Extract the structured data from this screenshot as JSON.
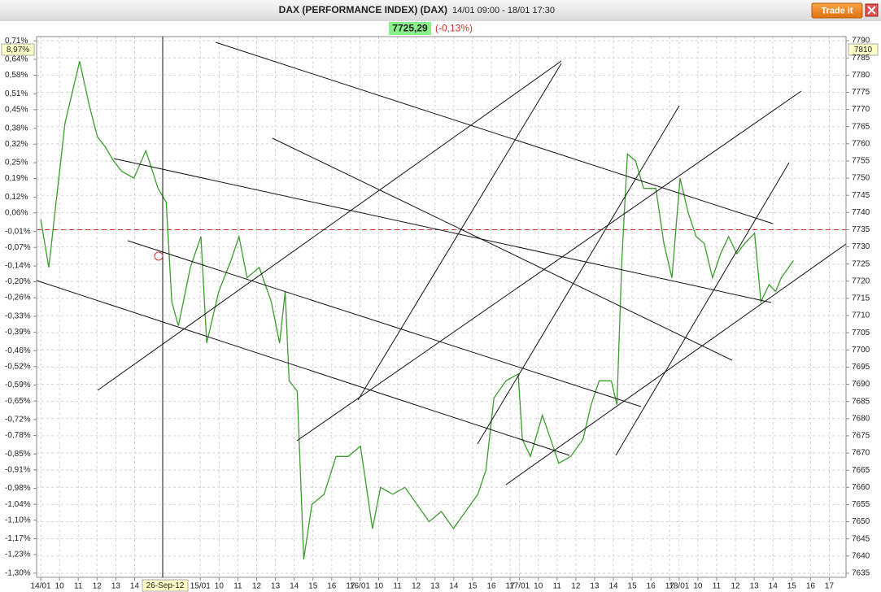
{
  "header": {
    "title": "DAX (PERFORMANCE INDEX) (DAX)",
    "range": "14/01 09:00 - 18/01 17:30",
    "button": "Trade it",
    "last_price": "7725,29",
    "change": "(-0,13%)"
  },
  "chart_data": {
    "type": "line",
    "color": "#3d9b2f",
    "x": [
      0,
      0.43,
      0.86,
      1.29,
      2.07,
      2.59,
      3.02,
      3.45,
      3.88,
      4.31,
      4.96,
      5.6,
      6.25,
      6.68,
      6.98,
      7.33,
      7.97,
      8.53,
      8.84,
      9.48,
      10.13,
      10.56,
      10.99,
      11.64,
      12.28,
      12.72,
      13.02,
      13.23,
      13.66,
      14.01,
      14.44,
      15.09,
      15.73,
      16.38,
      17.03,
      17.67,
      18.1,
      18.75,
      19.4,
      20.04,
      20.69,
      21.34,
      21.98,
      22.63,
      23.28,
      23.71,
      24.14,
      24.78,
      25.43,
      25.65,
      26.08,
      26.72,
      27.59,
      28.23,
      28.88,
      29.31,
      29.74,
      30.39,
      30.69,
      30.95,
      31.25,
      31.68,
      32.11,
      32.76,
      33.19,
      33.62,
      34.05,
      34.48,
      34.91,
      35.34,
      35.78,
      36.21,
      36.64,
      37.07,
      37.5,
      38.02,
      38.36,
      38.79,
      39.14,
      39.44,
      40.09
    ],
    "values": [
      7738,
      7724,
      7745,
      7766,
      7784,
      7771,
      7762,
      7759,
      7755,
      7752,
      7750,
      7758,
      7747,
      7743,
      7714,
      7707,
      7724,
      7733,
      7702,
      7717,
      7726,
      7733,
      7721,
      7724,
      7714,
      7702,
      7717,
      7691,
      7688,
      7639,
      7655,
      7658,
      7669,
      7669,
      7672,
      7648,
      7660,
      7658,
      7660,
      7655,
      7650,
      7653,
      7648,
      7653,
      7658,
      7665,
      7686,
      7691,
      7693,
      7674,
      7669,
      7681,
      7667,
      7669,
      7674,
      7684,
      7691,
      7691,
      7684,
      7726,
      7757,
      7755,
      7747,
      7747,
      7731,
      7721,
      7750,
      7740,
      7733,
      7731,
      7721,
      7728,
      7733,
      7728,
      7731,
      7734,
      7714,
      7719,
      7717,
      7721,
      7726
    ],
    "xlim": [
      -0.22,
      42.89
    ],
    "xticks": [
      {
        "value": 0,
        "label": "14/01"
      },
      {
        "value": 1,
        "label": "10"
      },
      {
        "value": 2,
        "label": "11"
      },
      {
        "value": 3,
        "label": "12"
      },
      {
        "value": 4,
        "label": "13"
      },
      {
        "value": 5,
        "label": "14"
      },
      {
        "value": 8.5,
        "label": "15/01"
      },
      {
        "value": 9.5,
        "label": "10"
      },
      {
        "value": 10.5,
        "label": "11"
      },
      {
        "value": 11.5,
        "label": "12"
      },
      {
        "value": 12.5,
        "label": "13"
      },
      {
        "value": 13.5,
        "label": "14"
      },
      {
        "value": 14.5,
        "label": "15"
      },
      {
        "value": 15.5,
        "label": "16"
      },
      {
        "value": 16.5,
        "label": "17"
      },
      {
        "value": 17,
        "label": "16/01"
      },
      {
        "value": 18,
        "label": "10"
      },
      {
        "value": 19,
        "label": "11"
      },
      {
        "value": 20,
        "label": "12"
      },
      {
        "value": 21,
        "label": "13"
      },
      {
        "value": 22,
        "label": "14"
      },
      {
        "value": 23,
        "label": "15"
      },
      {
        "value": 24,
        "label": "16"
      },
      {
        "value": 25,
        "label": "17"
      },
      {
        "value": 25.5,
        "label": "17/01"
      },
      {
        "value": 26.5,
        "label": "10"
      },
      {
        "value": 27.5,
        "label": "11"
      },
      {
        "value": 28.5,
        "label": "12"
      },
      {
        "value": 29.5,
        "label": "13"
      },
      {
        "value": 30.5,
        "label": "14"
      },
      {
        "value": 31.5,
        "label": "15"
      },
      {
        "value": 32.5,
        "label": "16"
      },
      {
        "value": 33.5,
        "label": "17"
      },
      {
        "value": 34,
        "label": "18/01"
      },
      {
        "value": 35,
        "label": "10"
      },
      {
        "value": 36,
        "label": "11"
      },
      {
        "value": 37,
        "label": "12"
      },
      {
        "value": 38,
        "label": "13"
      },
      {
        "value": 39,
        "label": "14"
      },
      {
        "value": 40,
        "label": "15"
      },
      {
        "value": 41,
        "label": "16"
      },
      {
        "value": 42,
        "label": "17"
      }
    ],
    "ylim": [
      7633.8,
      7791.2
    ],
    "yticks": [
      7790,
      7785,
      7780,
      7775,
      7770,
      7765,
      7760,
      7755,
      7750,
      7745,
      7740,
      7735,
      7730,
      7725,
      7720,
      7715,
      7710,
      7705,
      7700,
      7695,
      7690,
      7685,
      7680,
      7675,
      7670,
      7665,
      7660,
      7655,
      7650,
      7645,
      7640,
      7635
    ],
    "y2lim": [
      -1.316,
      0.726
    ],
    "y2ticks": [
      {
        "value": 0.71,
        "label": "0,71%"
      },
      {
        "value": 0.64,
        "label": "0,64%"
      },
      {
        "value": 0.58,
        "label": "0,58%"
      },
      {
        "value": 0.51,
        "label": "0,51%"
      },
      {
        "value": 0.45,
        "label": "0,45%"
      },
      {
        "value": 0.38,
        "label": "0,38%"
      },
      {
        "value": 0.32,
        "label": "0,32%"
      },
      {
        "value": 0.25,
        "label": "0,25%"
      },
      {
        "value": 0.19,
        "label": "0,19%"
      },
      {
        "value": 0.12,
        "label": "0,12%"
      },
      {
        "value": 0.06,
        "label": "0,06%"
      },
      {
        "value": -0.01,
        "label": "-0,01%"
      },
      {
        "value": -0.07,
        "label": "-0,07%"
      },
      {
        "value": -0.14,
        "label": "-0,14%"
      },
      {
        "value": -0.2,
        "label": "-0,20%"
      },
      {
        "value": -0.26,
        "label": "-0,26%"
      },
      {
        "value": -0.33,
        "label": "-0,33%"
      },
      {
        "value": -0.39,
        "label": "-0,39%"
      },
      {
        "value": -0.46,
        "label": "-0,46%"
      },
      {
        "value": -0.52,
        "label": "-0,52%"
      },
      {
        "value": -0.59,
        "label": "-0,59%"
      },
      {
        "value": -0.65,
        "label": "-0,65%"
      },
      {
        "value": -0.72,
        "label": "-0,72%"
      },
      {
        "value": -0.78,
        "label": "-0,78%"
      },
      {
        "value": -0.85,
        "label": "-0,85%"
      },
      {
        "value": -0.91,
        "label": "-0,91%"
      },
      {
        "value": -0.98,
        "label": "-0,98%"
      },
      {
        "value": -1.04,
        "label": "-1,04%"
      },
      {
        "value": -1.1,
        "label": "-1,10%"
      },
      {
        "value": -1.17,
        "label": "-1,17%"
      },
      {
        "value": -1.23,
        "label": "-1,23%"
      },
      {
        "value": -1.3,
        "label": "-1,30%"
      }
    ],
    "grid": true,
    "reference_line": 7735,
    "reference_color": "#d03030",
    "cursor_left": "8,97%",
    "cursor_right": "7810",
    "cursor_date": "26-Sep-12"
  }
}
